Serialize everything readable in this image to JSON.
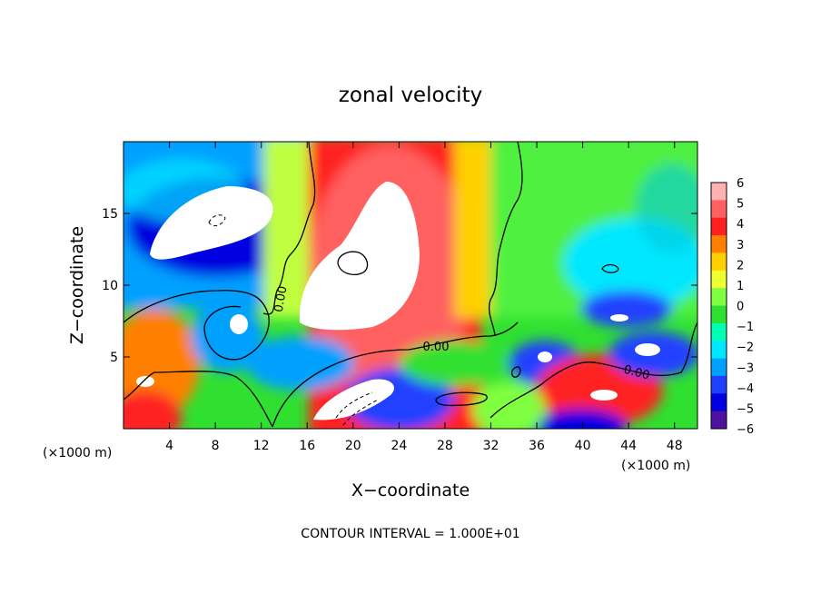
{
  "chart_data": {
    "type": "heatmap",
    "title": "zonal velocity",
    "xlabel": "X−coordinate",
    "ylabel": "Z−coordinate",
    "x_unit_left": "(×1000 m)",
    "x_unit_right": "(×1000 m)",
    "xlim": [
      0,
      50
    ],
    "ylim": [
      0,
      20
    ],
    "x_ticks": [
      "4",
      "8",
      "12",
      "16",
      "20",
      "24",
      "28",
      "32",
      "36",
      "40",
      "44",
      "48"
    ],
    "y_ticks": [
      "5",
      "10",
      "15"
    ],
    "colorbar": {
      "ticks": [
        "6",
        "5",
        "4",
        "3",
        "2",
        "1",
        "0",
        "−1",
        "−2",
        "−3",
        "−4",
        "−5",
        "−6"
      ],
      "range": [
        -6,
        6
      ],
      "colors": [
        "#ffb0b0",
        "#ff6060",
        "#ff2020",
        "#ff8000",
        "#ffd000",
        "#f0ff30",
        "#80ff40",
        "#30e030",
        "#00ffb0",
        "#00e8ff",
        "#00a0ff",
        "#2040ff",
        "#0000e0",
        "#5010a0"
      ]
    },
    "contour_labels": [
      "0.00",
      "0.00",
      "0.00"
    ],
    "footnote": "CONTOUR INTERVAL = 1.000E+01"
  }
}
